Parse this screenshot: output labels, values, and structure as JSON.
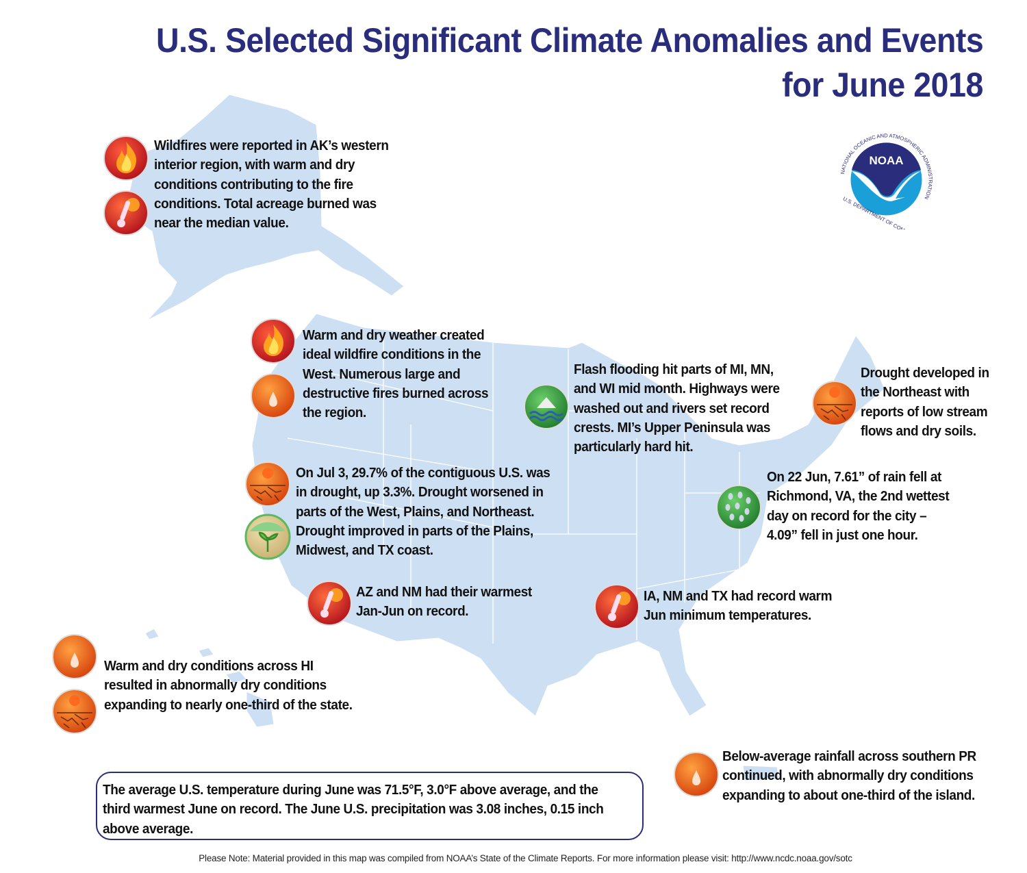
{
  "title": {
    "line1": "U.S. Selected Significant Climate Anomalies and Events",
    "line2": "for June 2018"
  },
  "colors": {
    "title": "#2a2c7c",
    "land": "#cddff3",
    "hot": "#d9232e",
    "dry": "#f06a1c",
    "wet": "#3aa84a"
  },
  "logo": {
    "text": "NOAA",
    "ring_top": "NATIONAL OCEANIC AND ATMOSPHERIC ADMINISTRATION",
    "ring_bottom": "U.S. DEPARTMENT OF COMMERCE"
  },
  "annotations": [
    {
      "region": "alaska",
      "icons": [
        "fire-icon",
        "hot-thermometer-icon"
      ],
      "lines": [
        "Wildfires were reported in AK’s western",
        "interior region, with warm and dry",
        "conditions contributing to the fire",
        "conditions. Total acreage burned was",
        "near the median value."
      ]
    },
    {
      "region": "west",
      "icons": [
        "fire-icon",
        "dry-drop-icon"
      ],
      "lines": [
        "Warm and dry weather created",
        "ideal wildfire conditions in the",
        "West. Numerous large and",
        "destructive fires burned across",
        "the region."
      ]
    },
    {
      "region": "upper-midwest",
      "icons": [
        "flood-icon"
      ],
      "lines": [
        "Flash flooding hit parts of MI, MN,",
        "and WI mid month. Highways were",
        "washed out and rivers set record",
        "crests. MI’s Upper Peninsula was",
        "particularly hard hit."
      ]
    },
    {
      "region": "northeast",
      "icons": [
        "drought-icon"
      ],
      "lines": [
        "Drought developed in",
        "the Northeast with",
        "reports of low stream",
        "flows and dry soils."
      ]
    },
    {
      "region": "contiguous-drought",
      "icons": [
        "drought-icon",
        "drought-improvement-icon"
      ],
      "lines": [
        "On Jul 3, 29.7% of the contiguous U.S. was",
        "in drought, up 3.3%. Drought worsened in",
        "parts of the West, Plains, and Northeast.",
        "Drought improved in parts of the Plains,",
        "Midwest, and TX coast."
      ]
    },
    {
      "region": "virginia",
      "icons": [
        "heavy-rain-icon"
      ],
      "lines": [
        "On 22 Jun, 7.61” of rain fell at",
        "Richmond, VA, the 2nd wettest",
        "day on record for the city –",
        "4.09” fell in just one hour."
      ]
    },
    {
      "region": "southwest",
      "icons": [
        "hot-thermometer-icon"
      ],
      "lines": [
        "AZ and NM had their warmest",
        "Jan-Jun on record."
      ]
    },
    {
      "region": "south-central",
      "icons": [
        "hot-thermometer-icon"
      ],
      "lines": [
        "IA, NM and TX had record warm",
        "Jun minimum temperatures."
      ]
    },
    {
      "region": "hawaii",
      "icons": [
        "dry-drop-icon",
        "drought-icon"
      ],
      "lines": [
        "Warm and dry conditions across HI",
        "resulted in abnormally dry conditions",
        "expanding to nearly one-third of the state."
      ]
    },
    {
      "region": "puerto-rico",
      "icons": [
        "dry-drop-icon"
      ],
      "lines": [
        "Below-average rainfall across southern PR",
        "continued, with abnormally dry conditions",
        "expanding to about one-third of the island."
      ]
    }
  ],
  "summary": {
    "lines": [
      "The average U.S. temperature during June was 71.5°F, 3.0°F above average, and the",
      "third warmest June on record. The June U.S. precipitation was 3.08 inches, 0.15 inch",
      "above average."
    ]
  },
  "footer": "Please Note: Material provided in this map was compiled from NOAA’s State of the Climate Reports. For more information please visit: http://www.ncdc.noaa.gov/sotc"
}
